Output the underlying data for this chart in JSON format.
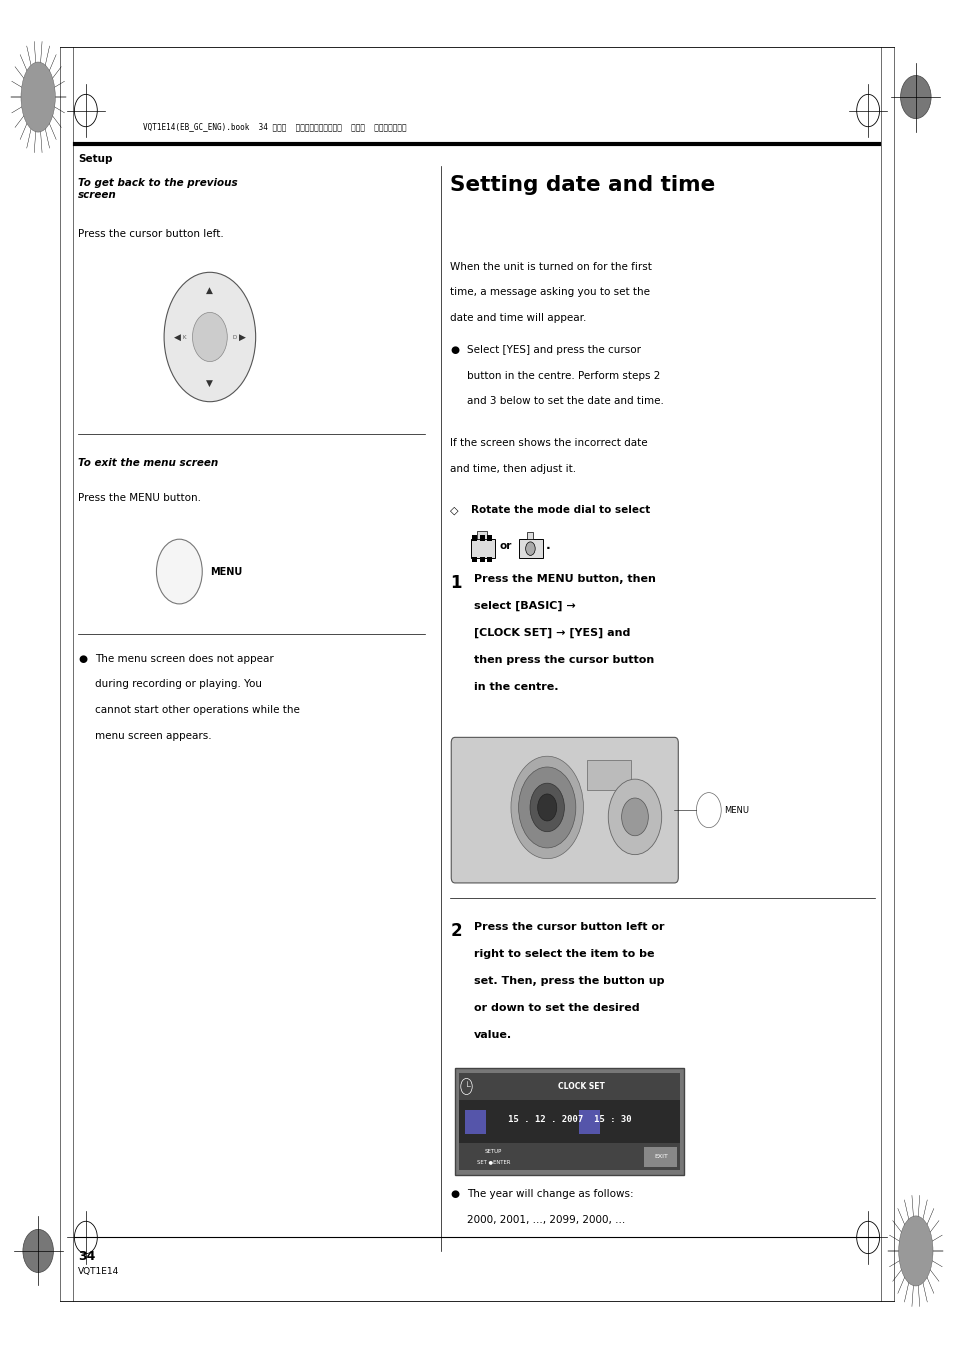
{
  "bg_color": "#ffffff",
  "page_width": 9.54,
  "page_height": 13.48,
  "header_text": "VQT1E14(EB_GC_ENG).book  34 ページ  ２００７年２月２８日  水曜日  午後２時２３分",
  "setup_label": "Setup",
  "section_title": "Setting date and time",
  "footer_line": "34",
  "footer_sub": "VQT1E14",
  "left_section1_title": "To get back to the previous\nscreen",
  "left_section1_body": "Press the cursor button left.",
  "left_section2_title": "To exit the menu screen",
  "left_section2_body": "Press the MENU button.",
  "left_bullet": "The menu screen does not appear during recording or playing. You cannot start other operations while the menu screen appears.",
  "right_intro1": "When the unit is turned on for the first time, a message asking you to set the date and time will appear.",
  "right_bullet1": "Select [YES] and press the cursor button in the centre. Perform steps 2 and 3 below to set the date and time.",
  "right_intro2": "If the screen shows the incorrect date and time, then adjust it.",
  "rotate_step": "Rotate the mode dial to select",
  "step1_num": "1",
  "step1_text": "Press the MENU button, then\nselect [BASIC] →\n[CLOCK SET] → [YES] and\nthen press the cursor button\nin the centre.",
  "step2_num": "2",
  "step2_text": "Press the cursor button left or\nright to select the item to be\nset. Then, press the button up\nor down to set the desired\nvalue.",
  "year_note": "The year will change as follows:\n2000, 2001, ..., 2099, 2000, ..."
}
